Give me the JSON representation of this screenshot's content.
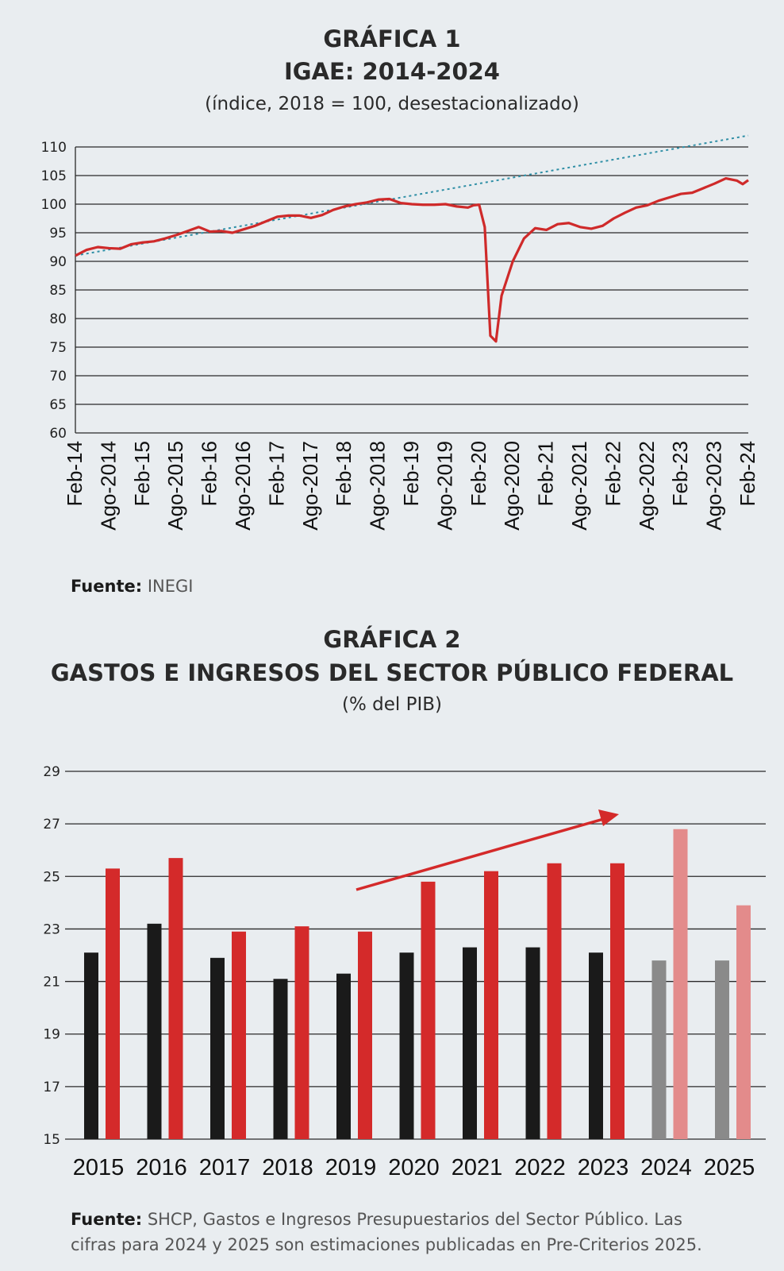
{
  "chart_data": [
    {
      "type": "line",
      "label": "GRÁFICA 1",
      "title": "IGAE: 2014-2024",
      "subtitle": "(índice, 2018 = 100, desestacionalizado)",
      "ylim": [
        60,
        110
      ],
      "yticks": [
        60,
        65,
        70,
        75,
        80,
        85,
        90,
        95,
        100,
        105,
        110
      ],
      "x_tick_labels": [
        "Feb-14",
        "Ago-2014",
        "Feb-15",
        "Ago-2015",
        "Feb-16",
        "Ago-2016",
        "Feb-17",
        "Ago-2017",
        "Feb-18",
        "Ago-2018",
        "Feb-19",
        "Ago-2019",
        "Feb-20",
        "Ago-2020",
        "Feb-21",
        "Ago-2021",
        "Feb-22",
        "Ago-2022",
        "Feb-23",
        "Ago-2023",
        "Feb-24"
      ],
      "series": [
        {
          "color": "#cf2a2a",
          "points": [
            [
              "2014-02",
              91.0
            ],
            [
              "2014-04",
              92.0
            ],
            [
              "2014-06",
              92.5
            ],
            [
              "2014-08",
              92.3
            ],
            [
              "2014-10",
              92.2
            ],
            [
              "2014-12",
              93.0
            ],
            [
              "2015-02",
              93.3
            ],
            [
              "2015-04",
              93.5
            ],
            [
              "2015-06",
              94.0
            ],
            [
              "2015-08",
              94.6
            ],
            [
              "2015-10",
              95.3
            ],
            [
              "2015-12",
              96.0
            ],
            [
              "2016-02",
              95.2
            ],
            [
              "2016-04",
              95.3
            ],
            [
              "2016-06",
              95.0
            ],
            [
              "2016-08",
              95.6
            ],
            [
              "2016-10",
              96.2
            ],
            [
              "2016-12",
              97.0
            ],
            [
              "2017-02",
              97.8
            ],
            [
              "2017-04",
              98.0
            ],
            [
              "2017-06",
              98.0
            ],
            [
              "2017-08",
              97.6
            ],
            [
              "2017-10",
              98.1
            ],
            [
              "2017-12",
              99.0
            ],
            [
              "2018-02",
              99.6
            ],
            [
              "2018-04",
              100.0
            ],
            [
              "2018-06",
              100.3
            ],
            [
              "2018-08",
              100.8
            ],
            [
              "2018-10",
              100.9
            ],
            [
              "2018-12",
              100.2
            ],
            [
              "2019-02",
              100.0
            ],
            [
              "2019-04",
              99.9
            ],
            [
              "2019-06",
              99.9
            ],
            [
              "2019-08",
              100.0
            ],
            [
              "2019-10",
              99.6
            ],
            [
              "2019-12",
              99.4
            ],
            [
              "2020-01",
              99.8
            ],
            [
              "2020-02",
              99.9
            ],
            [
              "2020-03",
              96.0
            ],
            [
              "2020-04",
              77.0
            ],
            [
              "2020-05",
              76.0
            ],
            [
              "2020-06",
              84.0
            ],
            [
              "2020-08",
              90.0
            ],
            [
              "2020-10",
              94.0
            ],
            [
              "2020-12",
              95.8
            ],
            [
              "2021-02",
              95.5
            ],
            [
              "2021-04",
              96.5
            ],
            [
              "2021-06",
              96.7
            ],
            [
              "2021-08",
              96.0
            ],
            [
              "2021-10",
              95.7
            ],
            [
              "2021-12",
              96.2
            ],
            [
              "2022-02",
              97.5
            ],
            [
              "2022-04",
              98.5
            ],
            [
              "2022-06",
              99.4
            ],
            [
              "2022-08",
              99.8
            ],
            [
              "2022-10",
              100.6
            ],
            [
              "2022-12",
              101.2
            ],
            [
              "2023-02",
              101.8
            ],
            [
              "2023-04",
              102.0
            ],
            [
              "2023-06",
              102.8
            ],
            [
              "2023-08",
              103.6
            ],
            [
              "2023-10",
              104.5
            ],
            [
              "2023-12",
              104.1
            ],
            [
              "2024-01",
              103.5
            ],
            [
              "2024-02",
              104.2
            ]
          ]
        },
        {
          "type": "trend",
          "style": "dotted",
          "color": "#2f8fa6",
          "points": [
            [
              "2014-02",
              91.0
            ],
            [
              "2024-02",
              112.0
            ]
          ]
        }
      ],
      "grid": true,
      "source_label": "Fuente:",
      "source_text": "INEGI"
    },
    {
      "type": "bar",
      "label": "GRÁFICA 2",
      "title": "GASTOS E INGRESOS DEL SECTOR PÚBLICO FEDERAL",
      "subtitle": "(% del PIB)",
      "ylim": [
        15,
        29
      ],
      "yticks": [
        15,
        17,
        19,
        21,
        23,
        25,
        27,
        29
      ],
      "categories": [
        "2015",
        "2016",
        "2017",
        "2018",
        "2019",
        "2020",
        "2021",
        "2022",
        "2023",
        "2024",
        "2025"
      ],
      "series": [
        {
          "color": "#1a1a1a",
          "estimate_color": "#8a8a8a",
          "values": [
            22.1,
            23.2,
            21.9,
            21.1,
            21.3,
            22.1,
            22.3,
            22.3,
            22.1,
            21.8,
            21.8
          ]
        },
        {
          "color": "#d42a2a",
          "estimate_color": "#e38b8b",
          "values": [
            25.3,
            25.7,
            22.9,
            23.1,
            22.9,
            24.8,
            25.2,
            25.5,
            25.5,
            26.8,
            23.9
          ]
        }
      ],
      "estimate_categories": [
        "2024",
        "2025"
      ],
      "annotation": "red arrow rising from 2019 to 2023",
      "grid": true,
      "source_label": "Fuente:",
      "source_text": "SHCP, Gastos e Ingresos Presupuestarios del Sector Público. Las cifras para 2024 y 2025 son estimaciones publicadas en Pre-Criterios 2025."
    }
  ]
}
